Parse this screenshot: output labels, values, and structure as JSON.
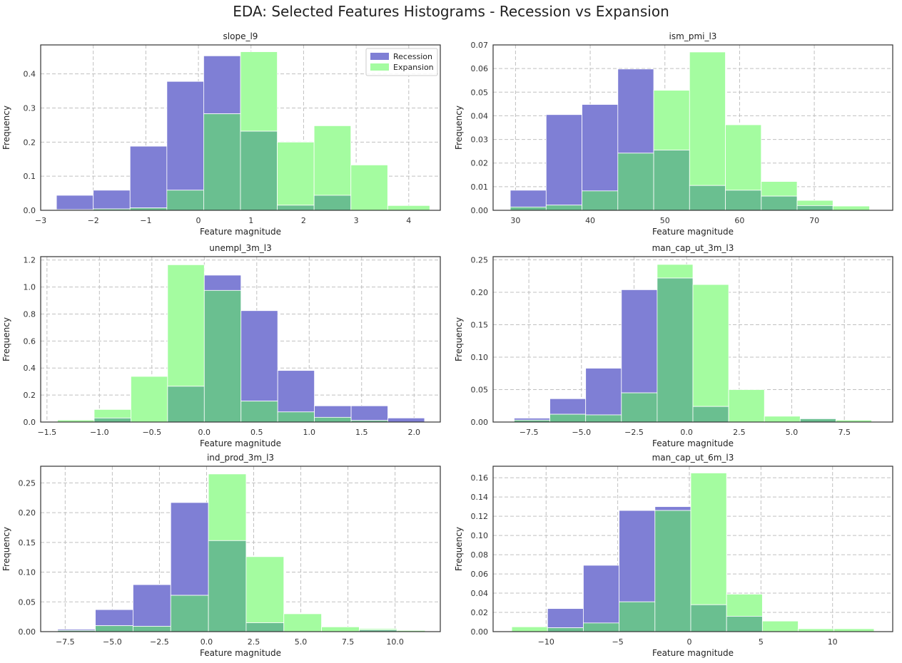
{
  "figure": {
    "title": "EDA: Selected Features Histograms - Recession vs Expansion"
  },
  "colors": {
    "recession": "#7f7fd5",
    "expansion": "#a4fca0",
    "overlap": "#6abf90",
    "grid": "#c0c0c0",
    "frame": "#333333"
  },
  "legend": {
    "placement": "top-right",
    "items": [
      "Recession",
      "Expansion"
    ]
  },
  "chart_data": [
    {
      "type": "histogram",
      "title": "slope_l9",
      "xlabel": "Feature magnitude",
      "ylabel": "Frequency",
      "xlim": [
        -3,
        4.6
      ],
      "ylim": [
        0,
        0.485
      ],
      "xticks": [
        -3,
        -2,
        -1,
        0,
        1,
        2,
        3,
        4
      ],
      "xtick_labels": [
        "−3",
        "−2",
        "−1",
        "0",
        "1",
        "2",
        "3",
        "4"
      ],
      "yticks": [
        0,
        0.1,
        0.2,
        0.3,
        0.4
      ],
      "ytick_labels": [
        "0.0",
        "0.1",
        "0.2",
        "0.3",
        "0.4"
      ],
      "has_legend": true,
      "series": [
        {
          "name": "Recession",
          "bins": [
            -2.7,
            -2.0,
            -1.3,
            -0.6,
            0.1,
            0.8,
            1.5,
            2.2,
            2.9,
            3.6,
            4.4
          ],
          "values": [
            0.044,
            0.059,
            0.188,
            0.378,
            0.453,
            0.232,
            0.015,
            0.044,
            0.0,
            0.0
          ]
        },
        {
          "name": "Expansion",
          "bins": [
            -2.7,
            -2.0,
            -1.3,
            -0.6,
            0.1,
            0.8,
            1.5,
            2.2,
            2.9,
            3.6,
            4.4
          ],
          "values": [
            0.002,
            0.004,
            0.007,
            0.059,
            0.283,
            0.465,
            0.2,
            0.248,
            0.133,
            0.014
          ]
        }
      ]
    },
    {
      "type": "histogram",
      "title": "ism_pmi_l3",
      "xlabel": "Feature magnitude",
      "ylabel": "Frequency",
      "xlim": [
        27,
        80.5
      ],
      "ylim": [
        0,
        0.07
      ],
      "xticks": [
        30,
        40,
        50,
        60,
        70
      ],
      "xtick_labels": [
        "30",
        "40",
        "50",
        "60",
        "70"
      ],
      "yticks": [
        0,
        0.01,
        0.02,
        0.03,
        0.04,
        0.05,
        0.06,
        0.07
      ],
      "ytick_labels": [
        "0.00",
        "0.01",
        "0.02",
        "0.03",
        "0.04",
        "0.05",
        "0.06",
        "0.07"
      ],
      "has_legend": false,
      "series": [
        {
          "name": "Recession",
          "bins": [
            29.3,
            34.1,
            38.9,
            43.7,
            48.5,
            53.3,
            58.1,
            62.9,
            67.7,
            72.5,
            77.4
          ],
          "values": [
            0.0085,
            0.0405,
            0.0448,
            0.0598,
            0.0255,
            0.0105,
            0.0085,
            0.006,
            0.002,
            0.0
          ]
        },
        {
          "name": "Expansion",
          "bins": [
            29.3,
            34.1,
            38.9,
            43.7,
            48.5,
            53.3,
            58.1,
            62.9,
            67.7,
            72.5,
            77.4
          ],
          "values": [
            0.0014,
            0.0022,
            0.0082,
            0.0242,
            0.0508,
            0.067,
            0.0362,
            0.0122,
            0.0042,
            0.0018
          ]
        }
      ]
    },
    {
      "type": "histogram",
      "title": "unempl_3m_l3",
      "xlabel": "Feature magnitude",
      "ylabel": "Frequency",
      "xlim": [
        -1.56,
        2.25
      ],
      "ylim": [
        0,
        1.225
      ],
      "xticks": [
        -1.5,
        -1.0,
        -0.5,
        0.0,
        0.5,
        1.0,
        1.5,
        2.0
      ],
      "xtick_labels": [
        "−1.5",
        "−1.0",
        "−0.5",
        "0.0",
        "0.5",
        "1.0",
        "1.5",
        "2.0"
      ],
      "yticks": [
        0,
        0.2,
        0.4,
        0.6,
        0.8,
        1.0,
        1.2
      ],
      "ytick_labels": [
        "0.0",
        "0.2",
        "0.4",
        "0.6",
        "0.8",
        "1.0",
        "1.2"
      ],
      "has_legend": false,
      "series": [
        {
          "name": "Recession",
          "bins": [
            -1.4,
            -1.05,
            -0.7,
            -0.35,
            0.0,
            0.35,
            0.7,
            1.05,
            1.4,
            1.75,
            2.1
          ],
          "values": [
            0.0,
            0.03,
            0.0,
            0.265,
            1.088,
            0.825,
            0.382,
            0.12,
            0.12,
            0.03
          ]
        },
        {
          "name": "Expansion",
          "bins": [
            -1.4,
            -1.05,
            -0.7,
            -0.35,
            0.0,
            0.35,
            0.7,
            1.05,
            1.4,
            1.75,
            2.1
          ],
          "values": [
            0.015,
            0.093,
            0.338,
            1.165,
            0.975,
            0.155,
            0.075,
            0.035,
            0.012,
            0.0
          ]
        }
      ]
    },
    {
      "type": "histogram",
      "title": "man_cap_ut_3m_l3",
      "xlabel": "Feature magnitude",
      "ylabel": "Frequency",
      "xlim": [
        -9.2,
        9.8
      ],
      "ylim": [
        0,
        0.255
      ],
      "xticks": [
        -7.5,
        -5.0,
        -2.5,
        0.0,
        2.5,
        5.0,
        7.5
      ],
      "xtick_labels": [
        "−7.5",
        "−5.0",
        "−2.5",
        "0.0",
        "2.5",
        "5.0",
        "7.5"
      ],
      "yticks": [
        0,
        0.05,
        0.1,
        0.15,
        0.2,
        0.25
      ],
      "ytick_labels": [
        "0.00",
        "0.05",
        "0.10",
        "0.15",
        "0.20",
        "0.25"
      ],
      "has_legend": false,
      "series": [
        {
          "name": "Recession",
          "bins": [
            -8.2,
            -6.5,
            -4.8,
            -3.1,
            -1.4,
            0.3,
            2.0,
            3.7,
            5.4,
            7.1,
            8.8
          ],
          "values": [
            0.006,
            0.036,
            0.083,
            0.204,
            0.222,
            0.024,
            0.0,
            0.0,
            0.006,
            0.0
          ]
        },
        {
          "name": "Expansion",
          "bins": [
            -8.2,
            -6.5,
            -4.8,
            -3.1,
            -1.4,
            0.3,
            2.0,
            3.7,
            5.4,
            7.1,
            8.8
          ],
          "values": [
            0.003,
            0.012,
            0.011,
            0.045,
            0.243,
            0.212,
            0.05,
            0.009,
            0.005,
            0.003
          ]
        }
      ]
    },
    {
      "type": "histogram",
      "title": "ind_prod_3m_l3",
      "xlabel": "Feature magnitude",
      "ylabel": "Frequency",
      "xlim": [
        -8.8,
        12.4
      ],
      "ylim": [
        0,
        0.278
      ],
      "xticks": [
        -7.5,
        -5.0,
        -2.5,
        0.0,
        2.5,
        5.0,
        7.5,
        10.0
      ],
      "xtick_labels": [
        "−7.5",
        "−5.0",
        "−2.5",
        "0.0",
        "2.5",
        "5.0",
        "7.5",
        "10.0"
      ],
      "yticks": [
        0,
        0.05,
        0.1,
        0.15,
        0.2,
        0.25
      ],
      "ytick_labels": [
        "0.00",
        "0.05",
        "0.10",
        "0.15",
        "0.20",
        "0.25"
      ],
      "has_legend": false,
      "series": [
        {
          "name": "Recession",
          "bins": [
            -7.9,
            -5.9,
            -3.9,
            -1.9,
            0.1,
            2.1,
            4.1,
            6.1,
            8.1,
            10.1,
            11.6
          ],
          "values": [
            0.004,
            0.037,
            0.079,
            0.217,
            0.153,
            0.015,
            0.0,
            0.0,
            0.003,
            0.0
          ]
        },
        {
          "name": "Expansion",
          "bins": [
            -7.9,
            -5.9,
            -3.9,
            -1.9,
            0.1,
            2.1,
            4.1,
            6.1,
            8.1,
            10.1,
            11.6
          ],
          "values": [
            0.002,
            0.01,
            0.009,
            0.061,
            0.265,
            0.126,
            0.03,
            0.008,
            0.005,
            0.002
          ]
        }
      ]
    },
    {
      "type": "histogram",
      "title": "man_cap_ut_6m_l3",
      "xlabel": "Feature magnitude",
      "ylabel": "Frequency",
      "xlim": [
        -13.7,
        14.2
      ],
      "ylim": [
        0,
        0.172
      ],
      "xticks": [
        -10,
        -5,
        0,
        5,
        10
      ],
      "xtick_labels": [
        "−10",
        "−5",
        "0",
        "5",
        "10"
      ],
      "yticks": [
        0,
        0.02,
        0.04,
        0.06,
        0.08,
        0.1,
        0.12,
        0.14,
        0.16
      ],
      "ytick_labels": [
        "0.00",
        "0.02",
        "0.04",
        "0.06",
        "0.08",
        "0.10",
        "0.12",
        "0.14",
        "0.16"
      ],
      "has_legend": false,
      "series": [
        {
          "name": "Recession",
          "bins": [
            -12.4,
            -9.9,
            -7.4,
            -4.9,
            -2.4,
            0.1,
            2.6,
            5.1,
            7.6,
            10.1,
            12.9
          ],
          "values": [
            0.0,
            0.024,
            0.069,
            0.126,
            0.13,
            0.028,
            0.016,
            0.0,
            0.0,
            0.0
          ]
        },
        {
          "name": "Expansion",
          "bins": [
            -12.4,
            -9.9,
            -7.4,
            -4.9,
            -2.4,
            0.1,
            2.6,
            5.1,
            7.6,
            10.1,
            12.9
          ],
          "values": [
            0.005,
            0.004,
            0.009,
            0.031,
            0.126,
            0.165,
            0.039,
            0.011,
            0.003,
            0.003
          ]
        }
      ]
    }
  ]
}
